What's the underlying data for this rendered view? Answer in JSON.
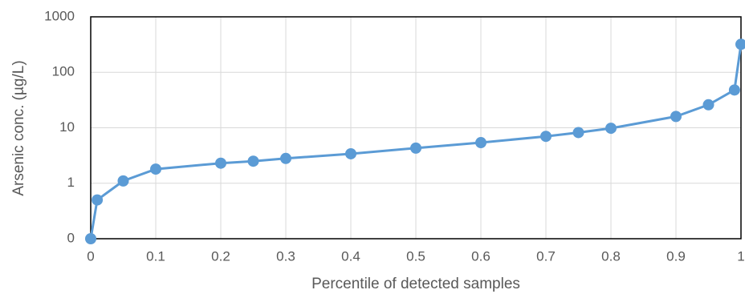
{
  "chart_data": {
    "type": "line",
    "x_label": "Percentile of detected samples",
    "y_label": "Arsenic conc. (µg/L)",
    "x": [
      0,
      0.01,
      0.05,
      0.1,
      0.2,
      0.25,
      0.3,
      0.4,
      0.5,
      0.6,
      0.7,
      0.75,
      0.8,
      0.9,
      0.95,
      0.99,
      1
    ],
    "series": [
      {
        "name": "Arsenic",
        "color": "#5b9bd5",
        "values": [
          0.1,
          0.5,
          1.1,
          1.8,
          2.3,
          2.5,
          2.8,
          3.4,
          4.3,
          5.4,
          7,
          8.2,
          9.8,
          16,
          26,
          48,
          320
        ]
      }
    ],
    "xlim": [
      0,
      1
    ],
    "xticks": [
      0,
      0.1,
      0.2,
      0.3,
      0.4,
      0.5,
      0.6,
      0.7,
      0.8,
      0.9,
      1
    ],
    "ylim": [
      0.1,
      1000
    ],
    "yticks": [
      {
        "value": 0.1,
        "label": "0"
      },
      1,
      10,
      100,
      1000
    ],
    "y_scale": "log",
    "grid": true
  }
}
